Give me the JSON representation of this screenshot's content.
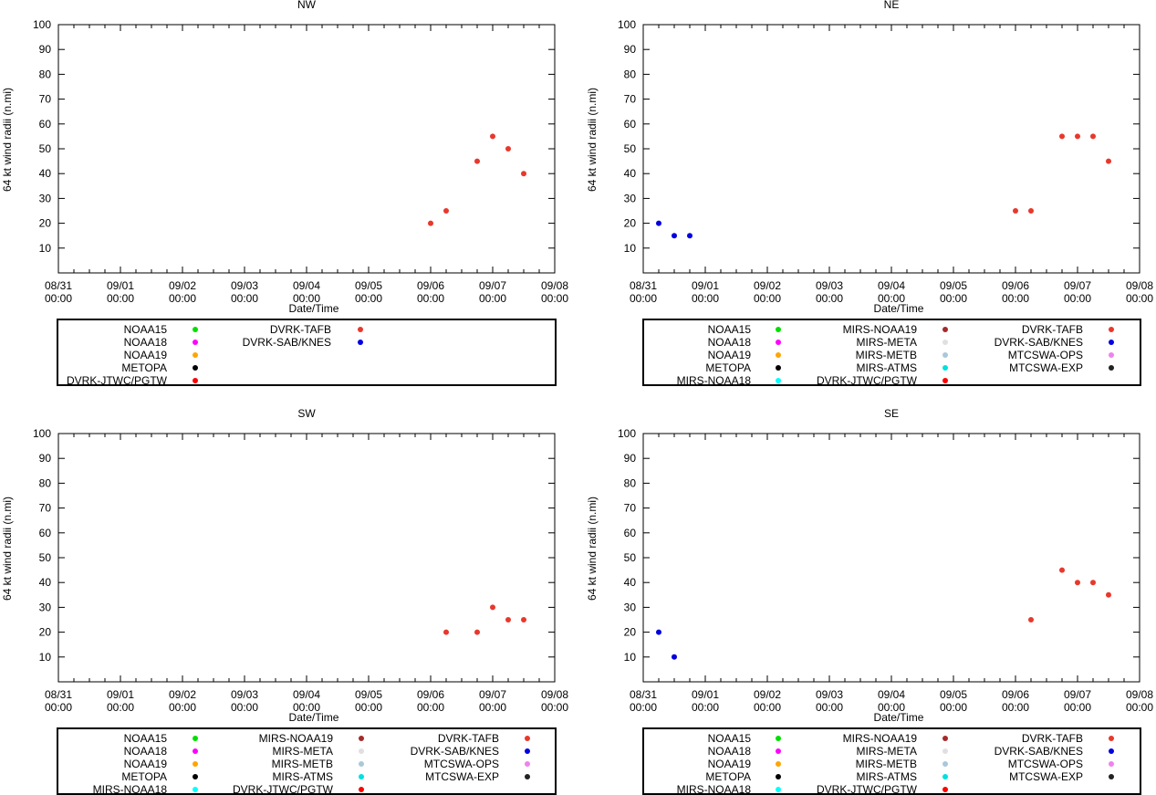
{
  "chart_data": [
    {
      "type": "scatter",
      "title": "NW",
      "xlabel": "Date/Time",
      "ylabel": "64 kt wind radii (n.mi)",
      "ylim": [
        0,
        100
      ],
      "y_ticks": [
        "10",
        "20",
        "30",
        "40",
        "50",
        "60",
        "70",
        "80",
        "90",
        "100"
      ],
      "xlim_days": [
        0,
        8
      ],
      "x_ticks": [
        {
          "date": "08/31",
          "time": "00:00"
        },
        {
          "date": "09/01",
          "time": "00:00"
        },
        {
          "date": "09/02",
          "time": "00:00"
        },
        {
          "date": "09/03",
          "time": "00:00"
        },
        {
          "date": "09/04",
          "time": "00:00"
        },
        {
          "date": "09/05",
          "time": "00:00"
        },
        {
          "date": "09/06",
          "time": "00:00"
        },
        {
          "date": "09/07",
          "time": "00:00"
        },
        {
          "date": "09/08",
          "time": "00:00"
        }
      ],
      "legend": {
        "columns": [
          [
            {
              "name": "NOAA15",
              "color": "#00e000"
            },
            {
              "name": "NOAA18",
              "color": "#ff00ff"
            },
            {
              "name": "NOAA19",
              "color": "#ffa500"
            },
            {
              "name": "METOPA",
              "color": "#000000"
            },
            {
              "name": "DVRK-JTWC/PGTW",
              "color": "#ff0000"
            }
          ],
          [
            {
              "name": "DVRK-TAFB",
              "color": "#e8382c"
            },
            {
              "name": "DVRK-SAB/KNES",
              "color": "#0000e0"
            }
          ]
        ]
      },
      "series": [
        {
          "name": "DVRK-TAFB",
          "color": "#e8382c",
          "points": [
            [
              6.0,
              20
            ],
            [
              6.25,
              25
            ],
            [
              6.75,
              45
            ],
            [
              7.0,
              55
            ],
            [
              7.25,
              50
            ],
            [
              7.5,
              40
            ]
          ]
        }
      ]
    },
    {
      "type": "scatter",
      "title": "NE",
      "xlabel": "Date/Time",
      "ylabel": "64 kt wind radii (n.mi)",
      "ylim": [
        0,
        100
      ],
      "y_ticks": [
        "10",
        "20",
        "30",
        "40",
        "50",
        "60",
        "70",
        "80",
        "90",
        "100"
      ],
      "xlim_days": [
        0,
        8
      ],
      "x_ticks": [
        {
          "date": "08/31",
          "time": "00:00"
        },
        {
          "date": "09/01",
          "time": "00:00"
        },
        {
          "date": "09/02",
          "time": "00:00"
        },
        {
          "date": "09/03",
          "time": "00:00"
        },
        {
          "date": "09/04",
          "time": "00:00"
        },
        {
          "date": "09/05",
          "time": "00:00"
        },
        {
          "date": "09/06",
          "time": "00:00"
        },
        {
          "date": "09/07",
          "time": "00:00"
        },
        {
          "date": "09/08",
          "time": "00:00"
        }
      ],
      "legend": {
        "columns": [
          [
            {
              "name": "NOAA15",
              "color": "#00e000"
            },
            {
              "name": "NOAA18",
              "color": "#ff00ff"
            },
            {
              "name": "NOAA19",
              "color": "#ffa500"
            },
            {
              "name": "METOPA",
              "color": "#000000"
            },
            {
              "name": "MIRS-NOAA18",
              "color": "#00ffff"
            }
          ],
          [
            {
              "name": "MIRS-NOAA19",
              "color": "#a52a2a"
            },
            {
              "name": "MIRS-META",
              "color": "#e0e0e0"
            },
            {
              "name": "MIRS-METB",
              "color": "#aac8d8"
            },
            {
              "name": "MIRS-ATMS",
              "color": "#00e0e0"
            },
            {
              "name": "DVRK-JTWC/PGTW",
              "color": "#ff0000"
            }
          ],
          [
            {
              "name": "DVRK-TAFB",
              "color": "#e8382c"
            },
            {
              "name": "DVRK-SAB/KNES",
              "color": "#0000e0"
            },
            {
              "name": "MTCSWA-OPS",
              "color": "#ee82ee"
            },
            {
              "name": "MTCSWA-EXP",
              "color": "#222222"
            }
          ]
        ]
      },
      "series": [
        {
          "name": "DVRK-SAB/KNES",
          "color": "#0000e0",
          "points": [
            [
              0.25,
              20
            ],
            [
              0.5,
              15
            ],
            [
              0.75,
              15
            ]
          ]
        },
        {
          "name": "DVRK-TAFB",
          "color": "#e8382c",
          "points": [
            [
              6.0,
              25
            ],
            [
              6.25,
              25
            ],
            [
              6.75,
              55
            ],
            [
              7.0,
              55
            ],
            [
              7.25,
              55
            ],
            [
              7.5,
              45
            ]
          ]
        }
      ]
    },
    {
      "type": "scatter",
      "title": "SW",
      "xlabel": "Date/Time",
      "ylabel": "64 kt wind radii (n.mi)",
      "ylim": [
        0,
        100
      ],
      "y_ticks": [
        "10",
        "20",
        "30",
        "40",
        "50",
        "60",
        "70",
        "80",
        "90",
        "100"
      ],
      "xlim_days": [
        0,
        8
      ],
      "x_ticks": [
        {
          "date": "08/31",
          "time": "00:00"
        },
        {
          "date": "09/01",
          "time": "00:00"
        },
        {
          "date": "09/02",
          "time": "00:00"
        },
        {
          "date": "09/03",
          "time": "00:00"
        },
        {
          "date": "09/04",
          "time": "00:00"
        },
        {
          "date": "09/05",
          "time": "00:00"
        },
        {
          "date": "09/06",
          "time": "00:00"
        },
        {
          "date": "09/07",
          "time": "00:00"
        },
        {
          "date": "09/08",
          "time": "00:00"
        }
      ],
      "legend": {
        "columns": [
          [
            {
              "name": "NOAA15",
              "color": "#00e000"
            },
            {
              "name": "NOAA18",
              "color": "#ff00ff"
            },
            {
              "name": "NOAA19",
              "color": "#ffa500"
            },
            {
              "name": "METOPA",
              "color": "#000000"
            },
            {
              "name": "MIRS-NOAA18",
              "color": "#00ffff"
            }
          ],
          [
            {
              "name": "MIRS-NOAA19",
              "color": "#a52a2a"
            },
            {
              "name": "MIRS-META",
              "color": "#e0e0e0"
            },
            {
              "name": "MIRS-METB",
              "color": "#aac8d8"
            },
            {
              "name": "MIRS-ATMS",
              "color": "#00e0e0"
            },
            {
              "name": "DVRK-JTWC/PGTW",
              "color": "#ff0000"
            }
          ],
          [
            {
              "name": "DVRK-TAFB",
              "color": "#e8382c"
            },
            {
              "name": "DVRK-SAB/KNES",
              "color": "#0000e0"
            },
            {
              "name": "MTCSWA-OPS",
              "color": "#ee82ee"
            },
            {
              "name": "MTCSWA-EXP",
              "color": "#222222"
            }
          ]
        ]
      },
      "series": [
        {
          "name": "DVRK-TAFB",
          "color": "#e8382c",
          "points": [
            [
              6.25,
              20
            ],
            [
              6.75,
              20
            ],
            [
              7.0,
              30
            ],
            [
              7.25,
              25
            ],
            [
              7.5,
              25
            ]
          ]
        }
      ]
    },
    {
      "type": "scatter",
      "title": "SE",
      "xlabel": "Date/Time",
      "ylabel": "64 kt wind radii (n.mi)",
      "ylim": [
        0,
        100
      ],
      "y_ticks": [
        "10",
        "20",
        "30",
        "40",
        "50",
        "60",
        "70",
        "80",
        "90",
        "100"
      ],
      "xlim_days": [
        0,
        8
      ],
      "x_ticks": [
        {
          "date": "08/31",
          "time": "00:00"
        },
        {
          "date": "09/01",
          "time": "00:00"
        },
        {
          "date": "09/02",
          "time": "00:00"
        },
        {
          "date": "09/03",
          "time": "00:00"
        },
        {
          "date": "09/04",
          "time": "00:00"
        },
        {
          "date": "09/05",
          "time": "00:00"
        },
        {
          "date": "09/06",
          "time": "00:00"
        },
        {
          "date": "09/07",
          "time": "00:00"
        },
        {
          "date": "09/08",
          "time": "00:00"
        }
      ],
      "legend": {
        "columns": [
          [
            {
              "name": "NOAA15",
              "color": "#00e000"
            },
            {
              "name": "NOAA18",
              "color": "#ff00ff"
            },
            {
              "name": "NOAA19",
              "color": "#ffa500"
            },
            {
              "name": "METOPA",
              "color": "#000000"
            },
            {
              "name": "MIRS-NOAA18",
              "color": "#00ffff"
            }
          ],
          [
            {
              "name": "MIRS-NOAA19",
              "color": "#a52a2a"
            },
            {
              "name": "MIRS-META",
              "color": "#e0e0e0"
            },
            {
              "name": "MIRS-METB",
              "color": "#aac8d8"
            },
            {
              "name": "MIRS-ATMS",
              "color": "#00e0e0"
            },
            {
              "name": "DVRK-JTWC/PGTW",
              "color": "#ff0000"
            }
          ],
          [
            {
              "name": "DVRK-TAFB",
              "color": "#e8382c"
            },
            {
              "name": "DVRK-SAB/KNES",
              "color": "#0000e0"
            },
            {
              "name": "MTCSWA-OPS",
              "color": "#ee82ee"
            },
            {
              "name": "MTCSWA-EXP",
              "color": "#222222"
            }
          ]
        ]
      },
      "series": [
        {
          "name": "DVRK-SAB/KNES",
          "color": "#0000e0",
          "points": [
            [
              0.25,
              20
            ],
            [
              0.5,
              10
            ]
          ]
        },
        {
          "name": "DVRK-TAFB",
          "color": "#e8382c",
          "points": [
            [
              6.25,
              25
            ],
            [
              6.75,
              45
            ],
            [
              7.0,
              40
            ],
            [
              7.25,
              40
            ],
            [
              7.5,
              35
            ]
          ]
        }
      ]
    }
  ]
}
